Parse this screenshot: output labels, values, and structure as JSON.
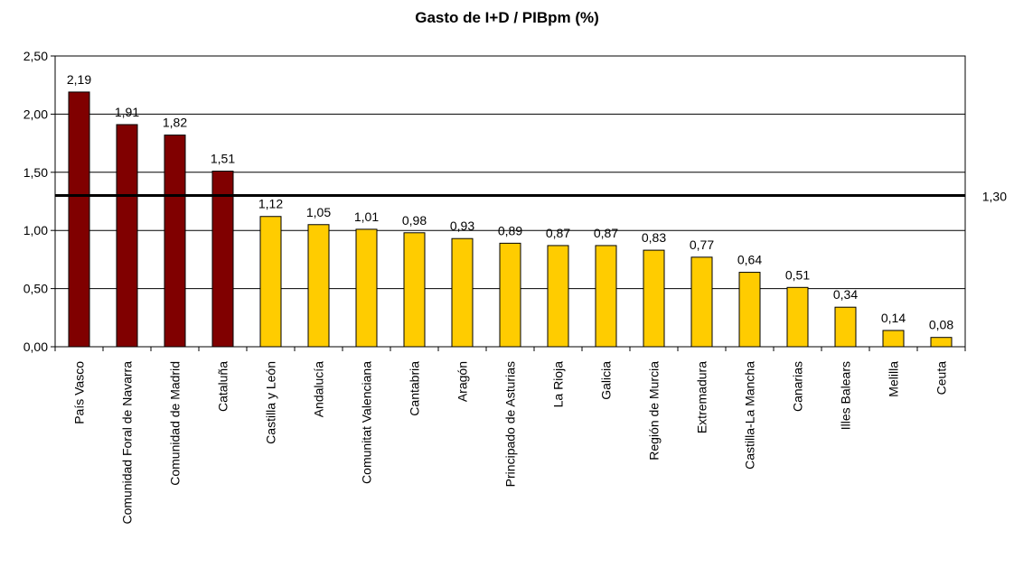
{
  "chart_data": {
    "type": "bar",
    "title": "Gasto de I+D / PIBpm (%)",
    "xlabel": "",
    "ylabel": "",
    "ylim": [
      0,
      2.5
    ],
    "yticks": [
      "0,00",
      "0,50",
      "1,00",
      "1,50",
      "2,00",
      "2,50"
    ],
    "grid": true,
    "legend": "none",
    "categories": [
      "País Vasco",
      "Comunidad Foral de Navarra",
      "Comunidad de Madrid",
      "Cataluña",
      "Castilla y León",
      "Andalucía",
      "Comunitat Valenciana",
      "Cantabria",
      "Aragón",
      "Principado de Asturias",
      "La Rioja",
      "Galicia",
      "Región de Murcia",
      "Extremadura",
      "Castilla-La Mancha",
      "Canarias",
      "Illes Balears",
      "Melilla",
      "Ceuta"
    ],
    "values": [
      2.19,
      1.91,
      1.82,
      1.51,
      1.12,
      1.05,
      1.01,
      0.98,
      0.93,
      0.89,
      0.87,
      0.87,
      0.83,
      0.77,
      0.64,
      0.51,
      0.34,
      0.14,
      0.08
    ],
    "value_labels": [
      "2,19",
      "1,91",
      "1,82",
      "1,51",
      "1,12",
      "1,05",
      "1,01",
      "0,98",
      "0,93",
      "0,89",
      "0,87",
      "0,87",
      "0,83",
      "0,77",
      "0,64",
      "0,51",
      "0,34",
      "0,14",
      "0,08"
    ],
    "bar_colors": [
      "#800000",
      "#800000",
      "#800000",
      "#800000",
      "#FFCC00",
      "#FFCC00",
      "#FFCC00",
      "#FFCC00",
      "#FFCC00",
      "#FFCC00",
      "#FFCC00",
      "#FFCC00",
      "#FFCC00",
      "#FFCC00",
      "#FFCC00",
      "#FFCC00",
      "#FFCC00",
      "#FFCC00",
      "#FFCC00"
    ],
    "reference_line": {
      "value": 1.3,
      "label": "1,30",
      "color": "#000000"
    }
  }
}
